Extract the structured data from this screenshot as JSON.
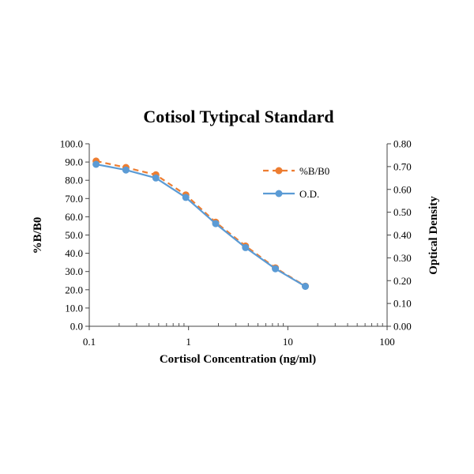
{
  "chart_data": {
    "type": "line",
    "title": "Cotisol Tytipcal Standard",
    "xlabel": "Cortisol Concentration (ng/ml)",
    "ylabel": "%B/B0",
    "y2label": "Optical Density",
    "xscale": "log",
    "xlim": [
      0.1,
      100
    ],
    "ylim": [
      0,
      100
    ],
    "y2lim": [
      0,
      0.8
    ],
    "x_ticks": [
      "0.1",
      "1",
      "10",
      "100"
    ],
    "y_ticks": [
      "0.0",
      "10.0",
      "20.0",
      "30.0",
      "40.0",
      "50.0",
      "60.0",
      "70.0",
      "80.0",
      "90.0",
      "100.0"
    ],
    "y2_ticks": [
      "0.00",
      "0.10",
      "0.20",
      "0.30",
      "0.40",
      "0.50",
      "0.60",
      "0.70",
      "0.80"
    ],
    "legend_position": "top-right",
    "x": [
      0.117,
      0.234,
      0.469,
      0.938,
      1.875,
      3.75,
      7.5,
      15
    ],
    "series": [
      {
        "name": "%B/B0",
        "axis": "left",
        "color": "#ED7D31",
        "style": "dashed",
        "values": [
          90.5,
          87.0,
          83.0,
          72.0,
          57.0,
          44.0,
          32.0,
          22.0
        ]
      },
      {
        "name": "O.D.",
        "axis": "right",
        "color": "#5B9BD5",
        "style": "solid",
        "values": [
          0.71,
          0.685,
          0.65,
          0.565,
          0.45,
          0.345,
          0.252,
          0.175
        ]
      }
    ]
  }
}
